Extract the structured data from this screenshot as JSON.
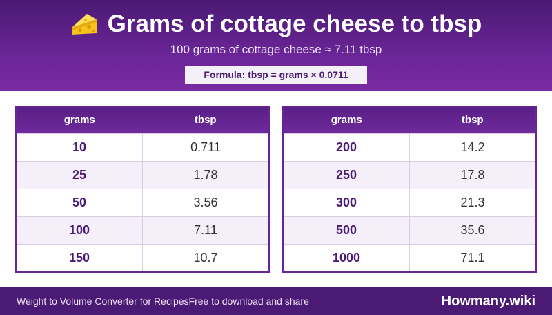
{
  "header": {
    "icon": "cheese-icon",
    "title": "Grams of cottage cheese to tbsp",
    "subtitle": "100 grams of cottage cheese ≈ 7.11 tbsp",
    "formula": "Formula: tbsp = grams × 0.0711"
  },
  "tables": [
    {
      "headers": [
        "grams",
        "tbsp"
      ],
      "rows": [
        [
          "10",
          "0.711"
        ],
        [
          "25",
          "1.78"
        ],
        [
          "50",
          "3.56"
        ],
        [
          "100",
          "7.11"
        ],
        [
          "150",
          "10.7"
        ]
      ]
    },
    {
      "headers": [
        "grams",
        "tbsp"
      ],
      "rows": [
        [
          "200",
          "14.2"
        ],
        [
          "250",
          "17.8"
        ],
        [
          "300",
          "21.3"
        ],
        [
          "500",
          "35.6"
        ],
        [
          "1000",
          "71.1"
        ]
      ]
    }
  ],
  "footer": {
    "text": "Weight to Volume Converter for Recipes",
    "subtext": "Free to download and share",
    "brand": "Howmany.wiki"
  },
  "colors": {
    "primary": "#6a2596",
    "dark": "#4a1a74",
    "row_alt": "#f4eff8"
  }
}
